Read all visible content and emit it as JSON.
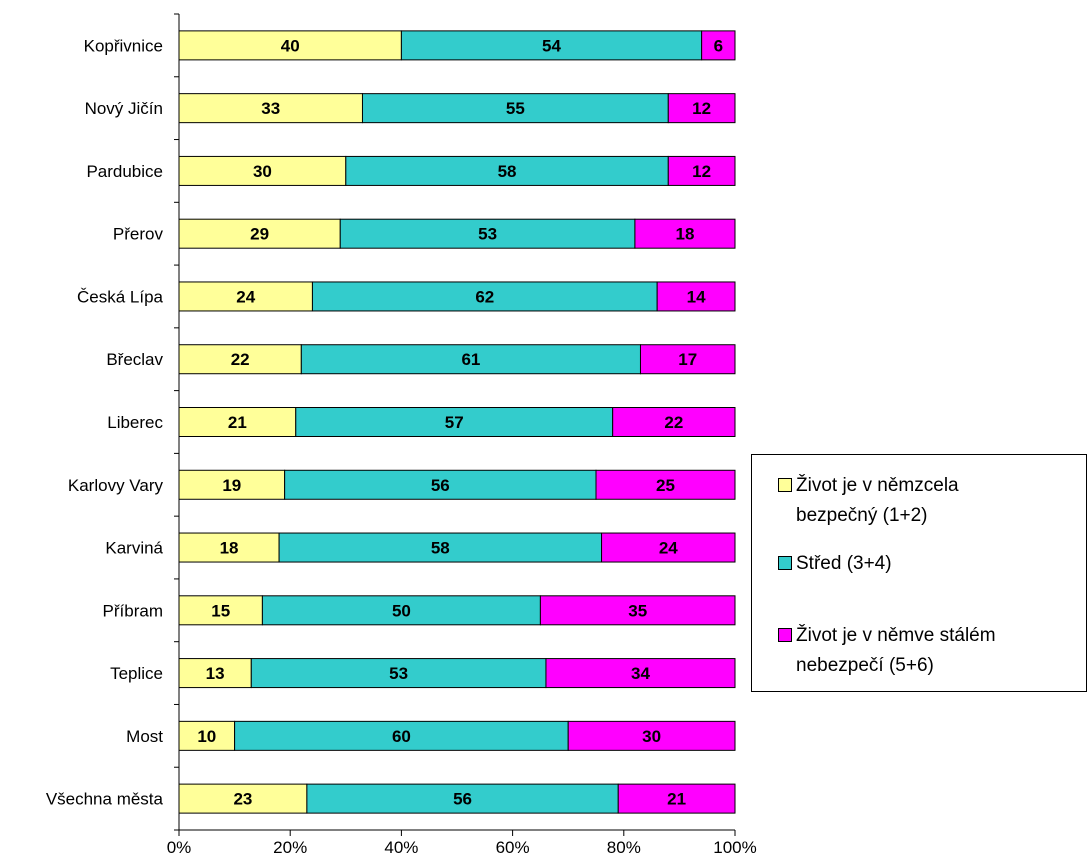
{
  "chart_data": {
    "type": "bar",
    "orientation": "horizontal",
    "stacked": true,
    "percent_stacked": true,
    "categories": [
      "Kopřivnice",
      "Nový Jičín",
      "Pardubice",
      "Přerov",
      "Česká Lípa",
      "Břeclav",
      "Liberec",
      "Karlovy Vary",
      "Karviná",
      "Příbram",
      "Teplice",
      "Most",
      "Všechna města"
    ],
    "series": [
      {
        "name": "Život je v němzcela bezpečný (1+2)",
        "color": "#ffff99",
        "values": [
          40,
          33,
          30,
          29,
          24,
          22,
          21,
          19,
          18,
          15,
          13,
          10,
          23
        ]
      },
      {
        "name": "Střed (3+4)",
        "color": "#33cccc",
        "values": [
          54,
          55,
          58,
          53,
          62,
          61,
          57,
          56,
          58,
          50,
          53,
          60,
          56
        ]
      },
      {
        "name": "Život je v němve stálém nebezpečí (5+6)",
        "color": "#ff00ff",
        "values": [
          6,
          12,
          12,
          18,
          14,
          17,
          22,
          25,
          24,
          35,
          34,
          30,
          21
        ]
      }
    ],
    "xlim": [
      0,
      100
    ],
    "xticks": [
      "0%",
      "20%",
      "40%",
      "60%",
      "80%",
      "100%"
    ],
    "grid": false,
    "legend_position": "right"
  },
  "legend": {
    "items": [
      {
        "text": "Život je v němzcela\nbezpečný (1+2)",
        "color": "#ffff99"
      },
      {
        "text": "Střed (3+4)",
        "color": "#33cccc"
      },
      {
        "text": "Život je v němve stálém\nnebezpečí (5+6)",
        "color": "#ff00ff"
      }
    ]
  }
}
